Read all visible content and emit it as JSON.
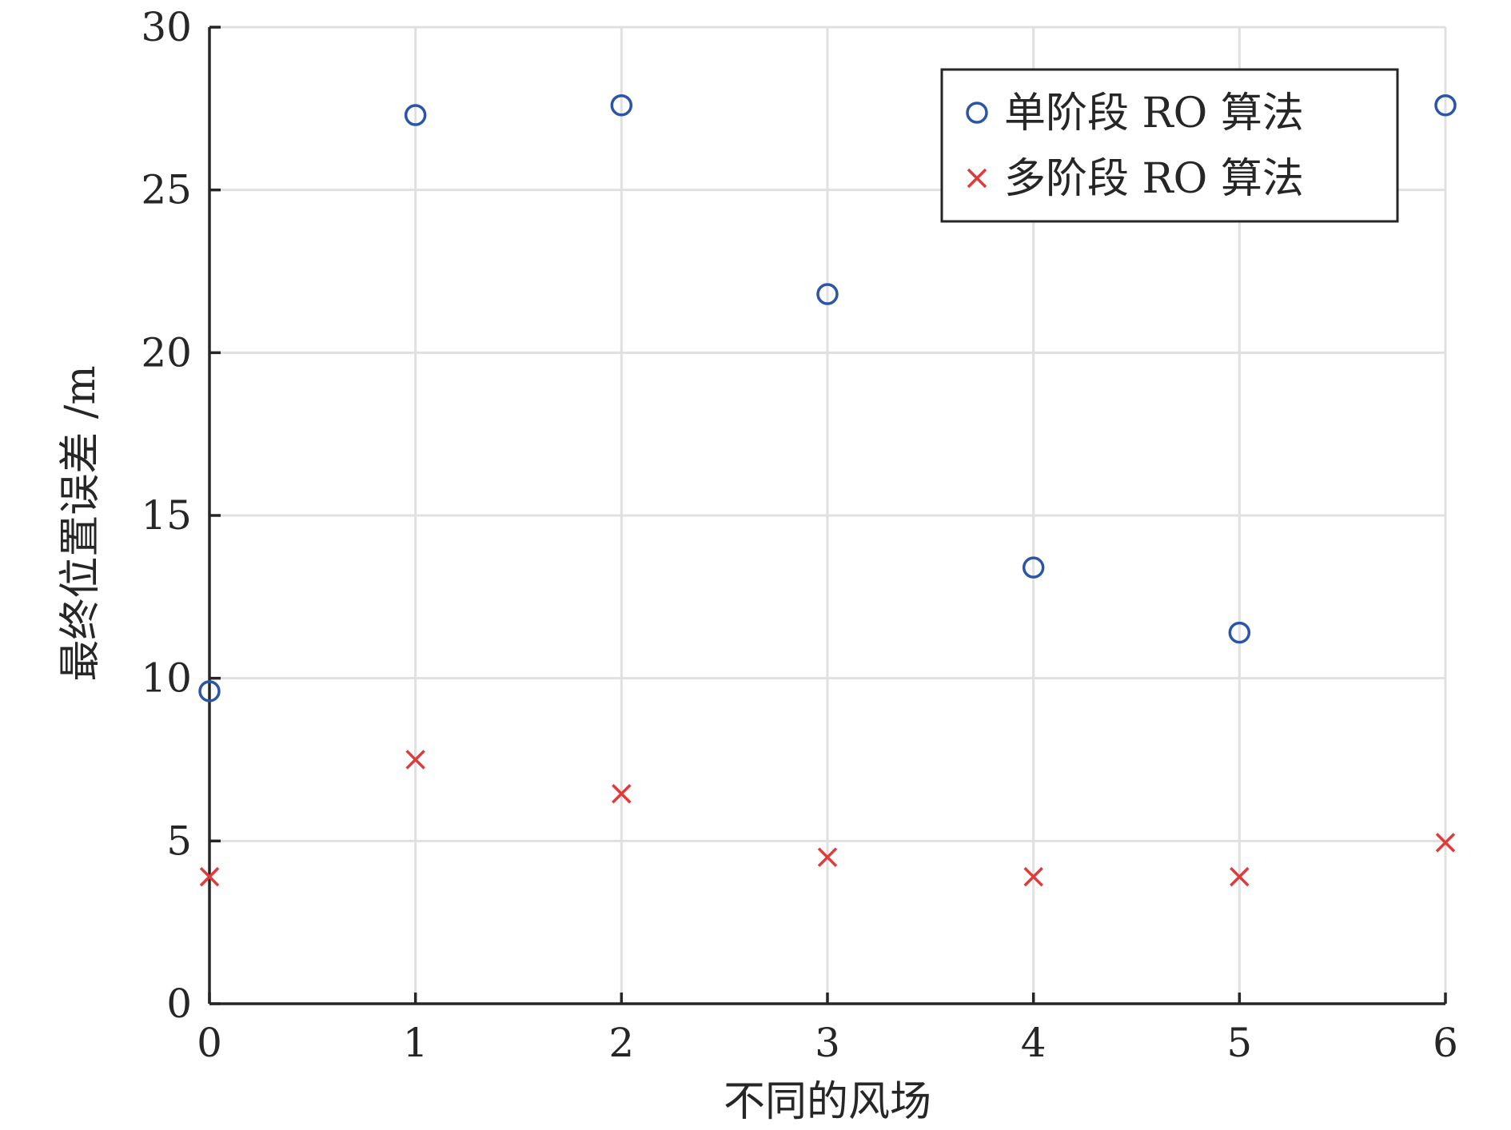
{
  "chart_data": {
    "type": "scatter",
    "xlabel": "不同的风场",
    "ylabel": "最终位置误差 /m",
    "xlim": [
      0,
      6
    ],
    "ylim": [
      0,
      30
    ],
    "xticks": [
      "0",
      "1",
      "2",
      "3",
      "4",
      "5",
      "6"
    ],
    "yticks": [
      "0",
      "5",
      "10",
      "15",
      "20",
      "25",
      "30"
    ],
    "grid": true,
    "legend_position": "top-right",
    "series": [
      {
        "name": "单阶段 RO 算法",
        "marker": "circle",
        "color": "#2b56a8",
        "x": [
          0,
          1,
          2,
          3,
          4,
          5,
          6
        ],
        "y": [
          9.6,
          27.3,
          27.6,
          21.8,
          13.4,
          11.4,
          27.6
        ]
      },
      {
        "name": "多阶段 RO 算法",
        "marker": "cross",
        "color": "#e03a3a",
        "x": [
          0,
          1,
          2,
          3,
          4,
          5,
          6
        ],
        "y": [
          3.9,
          7.5,
          6.45,
          4.5,
          3.9,
          3.9,
          4.95
        ]
      }
    ]
  }
}
